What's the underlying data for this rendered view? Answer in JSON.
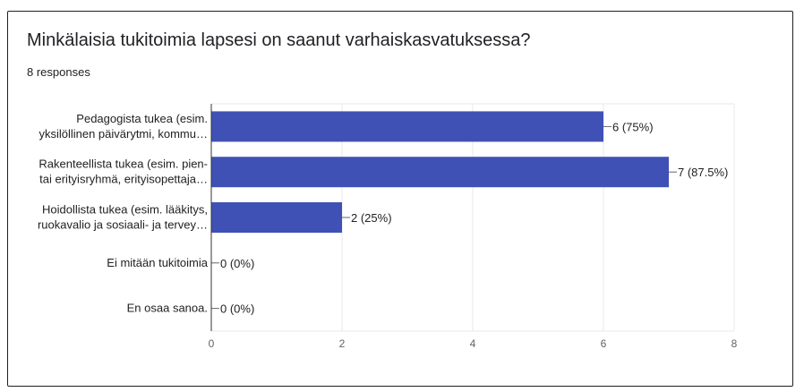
{
  "page": {
    "title": "Minkälaisia tukitoimia lapsesi on saanut varhaiskasvatuksessa?",
    "subtitle": "8 responses"
  },
  "colors": {
    "bar": "#3f51b5",
    "grid": "#e8e8e8",
    "axis": "#333333",
    "label": "#202124",
    "tick": "#5f6368"
  },
  "chart_data": {
    "type": "bar",
    "orientation": "horizontal",
    "categories": [
      [
        "Pedagogista tukea (esim.",
        "yksilöllinen päivärytmi, kommu…"
      ],
      [
        "Rakenteellista tukea (esim. pien-",
        "tai erityisryhmä, erityisopettaja…"
      ],
      [
        "Hoidollista tukea (esim. lääkitys,",
        "ruokavalio ja sosiaali- ja tervey…"
      ],
      [
        "Ei mitään tukitoimia"
      ],
      [
        "En osaa sanoa."
      ]
    ],
    "values": [
      6,
      7,
      2,
      0,
      0
    ],
    "data_labels": [
      "6 (75%)",
      "7 (87.5%)",
      "2 (25%)",
      "0 (0%)",
      "0 (0%)"
    ],
    "xlim": [
      0,
      8
    ],
    "xticks": [
      "0",
      "2",
      "4",
      "6",
      "8"
    ],
    "grid": true,
    "legend": "none"
  }
}
